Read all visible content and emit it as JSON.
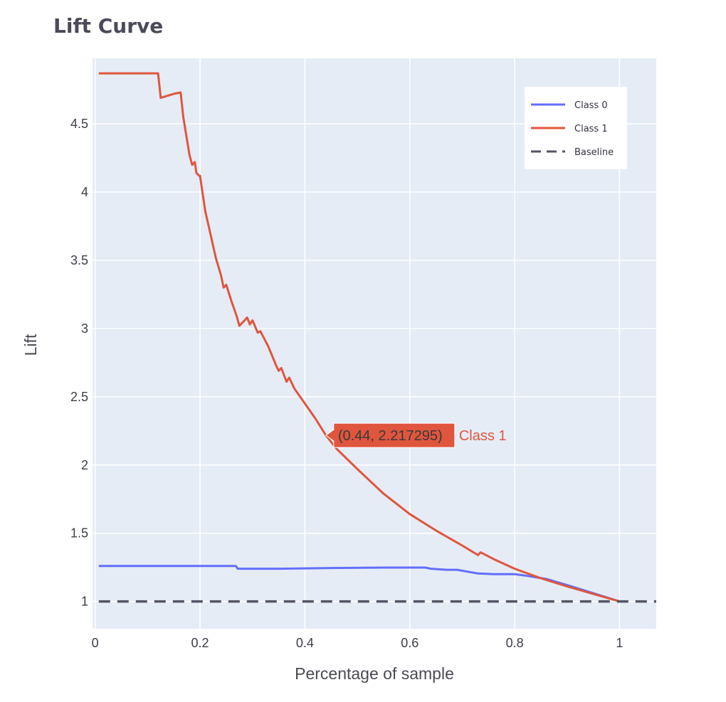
{
  "chart_data": {
    "type": "line",
    "title": "Lift Curve",
    "xlabel": "Percentage of sample",
    "ylabel": "Lift",
    "xlim": [
      -0.005,
      1.07
    ],
    "ylim": [
      0.8,
      4.98
    ],
    "grid": true,
    "legend_position": "top-right",
    "x_ticks": [
      {
        "value": 0,
        "label": "0"
      },
      {
        "value": 0.2,
        "label": "0.2"
      },
      {
        "value": 0.4,
        "label": "0.4"
      },
      {
        "value": 0.6,
        "label": "0.6"
      },
      {
        "value": 0.8,
        "label": "0.8"
      },
      {
        "value": 1,
        "label": "1"
      }
    ],
    "y_ticks": [
      {
        "value": 1,
        "label": "1"
      },
      {
        "value": 1.5,
        "label": "1.5"
      },
      {
        "value": 2,
        "label": "2"
      },
      {
        "value": 2.5,
        "label": "2.5"
      },
      {
        "value": 3,
        "label": "3"
      },
      {
        "value": 3.5,
        "label": "3.5"
      },
      {
        "value": 4,
        "label": "4"
      },
      {
        "value": 4.5,
        "label": "4.5"
      }
    ],
    "series": [
      {
        "name": "Class 0",
        "color": "#636efa",
        "dash": "solid",
        "points": [
          [
            0.007,
            1.26
          ],
          [
            0.1,
            1.26
          ],
          [
            0.2,
            1.26
          ],
          [
            0.268,
            1.26
          ],
          [
            0.272,
            1.24
          ],
          [
            0.35,
            1.24
          ],
          [
            0.45,
            1.245
          ],
          [
            0.55,
            1.248
          ],
          [
            0.63,
            1.248
          ],
          [
            0.64,
            1.24
          ],
          [
            0.67,
            1.232
          ],
          [
            0.69,
            1.232
          ],
          [
            0.73,
            1.205
          ],
          [
            0.76,
            1.2
          ],
          [
            0.8,
            1.2
          ],
          [
            0.82,
            1.19
          ],
          [
            0.86,
            1.165
          ],
          [
            0.9,
            1.12
          ],
          [
            0.95,
            1.06
          ],
          [
            1.0,
            1.0
          ]
        ]
      },
      {
        "name": "Class 1",
        "color": "#e0553d",
        "dash": "solid",
        "points": [
          [
            0.007,
            4.87
          ],
          [
            0.12,
            4.87
          ],
          [
            0.125,
            4.69
          ],
          [
            0.15,
            4.72
          ],
          [
            0.163,
            4.73
          ],
          [
            0.168,
            4.55
          ],
          [
            0.18,
            4.27
          ],
          [
            0.185,
            4.2
          ],
          [
            0.19,
            4.22
          ],
          [
            0.193,
            4.14
          ],
          [
            0.198,
            4.12
          ],
          [
            0.2,
            4.12
          ],
          [
            0.21,
            3.86
          ],
          [
            0.22,
            3.69
          ],
          [
            0.23,
            3.52
          ],
          [
            0.24,
            3.39
          ],
          [
            0.245,
            3.3
          ],
          [
            0.25,
            3.32
          ],
          [
            0.26,
            3.2
          ],
          [
            0.27,
            3.09
          ],
          [
            0.275,
            3.02
          ],
          [
            0.285,
            3.06
          ],
          [
            0.29,
            3.08
          ],
          [
            0.295,
            3.03
          ],
          [
            0.3,
            3.06
          ],
          [
            0.31,
            2.97
          ],
          [
            0.315,
            2.98
          ],
          [
            0.33,
            2.87
          ],
          [
            0.345,
            2.73
          ],
          [
            0.35,
            2.69
          ],
          [
            0.355,
            2.71
          ],
          [
            0.365,
            2.61
          ],
          [
            0.37,
            2.64
          ],
          [
            0.38,
            2.56
          ],
          [
            0.4,
            2.45
          ],
          [
            0.42,
            2.34
          ],
          [
            0.44,
            2.217
          ],
          [
            0.46,
            2.12
          ],
          [
            0.5,
            1.97
          ],
          [
            0.55,
            1.79
          ],
          [
            0.6,
            1.64
          ],
          [
            0.65,
            1.52
          ],
          [
            0.7,
            1.41
          ],
          [
            0.73,
            1.34
          ],
          [
            0.735,
            1.36
          ],
          [
            0.76,
            1.31
          ],
          [
            0.8,
            1.24
          ],
          [
            0.85,
            1.17
          ],
          [
            0.9,
            1.11
          ],
          [
            0.95,
            1.055
          ],
          [
            1.0,
            1.0
          ]
        ]
      },
      {
        "name": "Baseline",
        "color": "#555566",
        "dash": "dashed",
        "points": [
          [
            0.007,
            1.0
          ],
          [
            1.07,
            1.0
          ]
        ]
      }
    ],
    "hover": {
      "x": 0.44,
      "y": 2.217295,
      "label": "(0.44, 2.217295)",
      "series_name": "Class 1",
      "color": "#e0553d"
    }
  }
}
